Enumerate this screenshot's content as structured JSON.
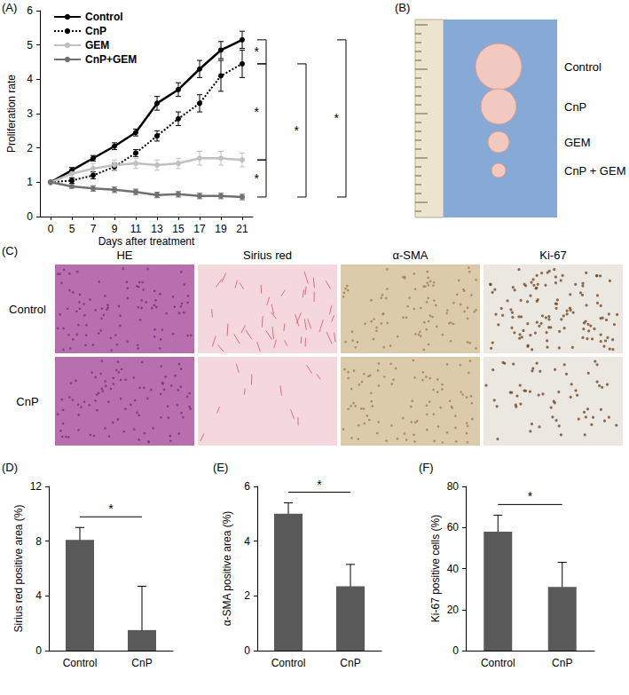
{
  "chart_data": [
    {
      "type": "line",
      "panel_label": "(A)",
      "x_label": "Days after treatment",
      "y_label": "Proliferation rate",
      "categories": [
        "0",
        "5",
        "7",
        "9",
        "11",
        "13",
        "15",
        "17",
        "19",
        "21"
      ],
      "series": [
        {
          "name": "Control",
          "color": "#000000",
          "marker": "circle",
          "line_style": "solid",
          "values": [
            1,
            1.35,
            1.7,
            2.05,
            2.45,
            3.3,
            3.7,
            4.3,
            4.85,
            5.15
          ],
          "errors": [
            0,
            0.08,
            0.08,
            0.1,
            0.1,
            0.2,
            0.2,
            0.25,
            0.25,
            0.25
          ]
        },
        {
          "name": "CnP",
          "color": "#000000",
          "marker": "circle",
          "line_style": "dotted",
          "values": [
            1,
            1.05,
            1.2,
            1.45,
            1.85,
            2.35,
            2.85,
            3.3,
            4.1,
            4.45
          ],
          "errors": [
            0,
            0.08,
            0.1,
            0.1,
            0.1,
            0.15,
            0.2,
            0.25,
            0.45,
            0.4
          ]
        },
        {
          "name": "GEM",
          "color": "#c0c0c0",
          "marker": "circle",
          "line_style": "solid",
          "values": [
            1,
            1.25,
            1.4,
            1.5,
            1.55,
            1.5,
            1.55,
            1.7,
            1.7,
            1.65
          ],
          "errors": [
            0,
            0.1,
            0.15,
            0.15,
            0.15,
            0.15,
            0.15,
            0.2,
            0.2,
            0.2
          ]
        },
        {
          "name": "CnP+GEM",
          "color": "#707070",
          "marker": "circle",
          "line_style": "solid",
          "values": [
            1,
            0.88,
            0.82,
            0.78,
            0.72,
            0.63,
            0.65,
            0.6,
            0.6,
            0.57
          ],
          "errors": [
            0,
            0.05,
            0.08,
            0.08,
            0.08,
            0.08,
            0.08,
            0.08,
            0.08,
            0.08
          ]
        }
      ],
      "ylim": [
        0,
        6
      ],
      "yticks": [
        0,
        1,
        2,
        3,
        4,
        5,
        6
      ],
      "grid": false,
      "legend": "upper left",
      "significance": [
        {
          "pair": [
            "Control",
            "CnP"
          ],
          "label": "*"
        },
        {
          "pair": [
            "CnP",
            "GEM"
          ],
          "label": "*"
        },
        {
          "pair": [
            "GEM",
            "CnP+GEM"
          ],
          "label": "*"
        },
        {
          "pair": [
            "CnP",
            "CnP+GEM"
          ],
          "label": "*"
        },
        {
          "pair": [
            "Control",
            "CnP+GEM"
          ],
          "label": "*"
        }
      ]
    },
    {
      "type": "bar",
      "panel_label": "(D)",
      "y_label": "Sirius red positive area (%)",
      "categories": [
        "Control",
        "CnP"
      ],
      "values": [
        8.1,
        1.5
      ],
      "errors": [
        0.9,
        3.2
      ],
      "color": "#595959",
      "ylim": [
        0,
        12
      ],
      "yticks": [
        0,
        4,
        8,
        12
      ],
      "grid": false,
      "significance": [
        {
          "pair": [
            "Control",
            "CnP"
          ],
          "label": "*"
        }
      ]
    },
    {
      "type": "bar",
      "panel_label": "(E)",
      "y_label": "α-SMA positive area (%)",
      "categories": [
        "Control",
        "CnP"
      ],
      "values": [
        5.0,
        2.35
      ],
      "errors": [
        0.4,
        0.8
      ],
      "color": "#595959",
      "ylim": [
        0,
        6
      ],
      "yticks": [
        0,
        2,
        4,
        6
      ],
      "grid": false,
      "significance": [
        {
          "pair": [
            "Control",
            "CnP"
          ],
          "label": "*"
        }
      ]
    },
    {
      "type": "bar",
      "panel_label": "(F)",
      "y_label": "Ki-67 positive cells (%)",
      "categories": [
        "Control",
        "CnP"
      ],
      "values": [
        58,
        31
      ],
      "errors": [
        8,
        12
      ],
      "color": "#595959",
      "ylim": [
        0,
        80
      ],
      "yticks": [
        0,
        20,
        40,
        60,
        80
      ],
      "grid": false,
      "significance": [
        {
          "pair": [
            "Control",
            "CnP"
          ],
          "label": "*"
        }
      ]
    }
  ],
  "photo_panel": {
    "panel_label": "(B)",
    "labels": [
      "Control",
      "CnP",
      "GEM",
      "CnP + GEM"
    ]
  },
  "histology_panel": {
    "panel_label": "(C)",
    "columns": [
      "HE",
      "Sirius red",
      "α-SMA",
      "Ki-67"
    ],
    "rows": [
      "Control",
      "CnP"
    ]
  }
}
